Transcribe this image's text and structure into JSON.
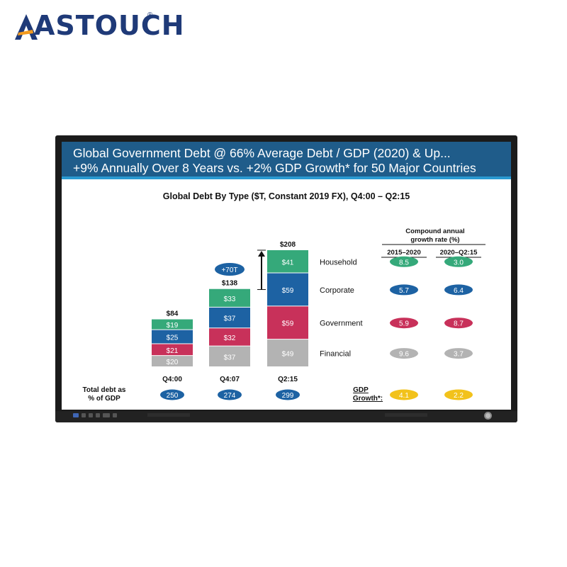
{
  "brand": {
    "name": "ASTOUCH",
    "reg": "®",
    "color": "#1f3a78"
  },
  "slide": {
    "title_line1": "Global Government Debt @ 66% Average Debt / GDP (2020) & Up...",
    "title_line2": "+9% Annually Over 8 Years vs. +2% GDP Growth* for 50 Major Countries",
    "title_bg": "#1f5c8a",
    "title_accent": "#2a9ad1"
  },
  "chart_data": {
    "type": "bar",
    "stacked": true,
    "title": "Global Debt By Type ($T, Constant 2019 FX), Q4:00 – Q2:15",
    "categories": [
      "Q4:00",
      "Q4:07",
      "Q2:15"
    ],
    "totals": [
      "$84",
      "$138",
      "$208"
    ],
    "series": [
      {
        "name": "Financial",
        "color": "#b3b3b3",
        "values": [
          20,
          37,
          49
        ],
        "labels": [
          "$20",
          "$37",
          "$49"
        ]
      },
      {
        "name": "Government",
        "color": "#c8315a",
        "values": [
          21,
          32,
          59
        ],
        "labels": [
          "$21",
          "$32",
          "$59"
        ]
      },
      {
        "name": "Corporate",
        "color": "#1d62a3",
        "values": [
          25,
          37,
          59
        ],
        "labels": [
          "$25",
          "$37",
          "$59"
        ]
      },
      {
        "name": "Household",
        "color": "#35a97a",
        "values": [
          19,
          33,
          41
        ],
        "labels": [
          "$19",
          "$33",
          "$41"
        ]
      }
    ],
    "increase_label": "+70T",
    "total_debt_label_line1": "Total debt as",
    "total_debt_label_line2": "% of GDP",
    "total_debt_pct": [
      "250",
      "274",
      "299"
    ],
    "cagr_header_line1": "Compound annual",
    "cagr_header_line2": "growth rate (%)",
    "cagr_columns": [
      "2015–2020",
      "2020–Q2:15"
    ],
    "cagr_rows": [
      {
        "name": "Household",
        "values": [
          "8.5",
          "3.0"
        ],
        "color": "#35a97a"
      },
      {
        "name": "Corporate",
        "values": [
          "5.7",
          "6.4"
        ],
        "color": "#1d62a3"
      },
      {
        "name": "Government",
        "values": [
          "5.9",
          "8.7"
        ],
        "color": "#c8315a"
      },
      {
        "name": "Financial",
        "values": [
          "9.6",
          "3.7"
        ],
        "color": "#b3b3b3"
      }
    ],
    "gdp_label_line1": "GDP",
    "gdp_label_line2": "Growth*:",
    "gdp_growth": {
      "values": [
        "4.1",
        "2.2"
      ],
      "color": "#f2c21b"
    }
  }
}
